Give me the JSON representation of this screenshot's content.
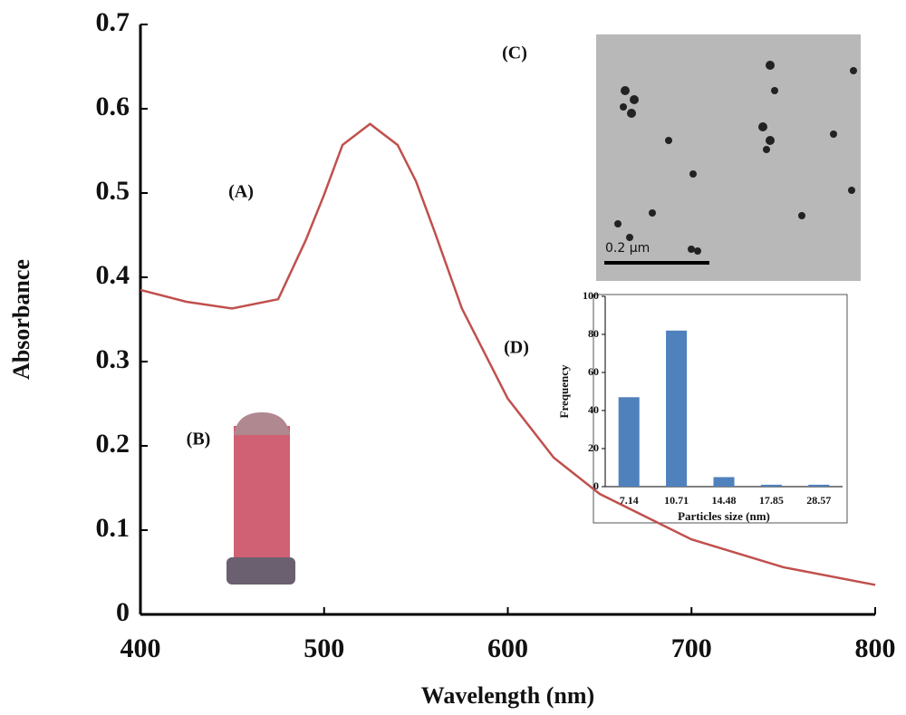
{
  "chart_data": [
    {
      "type": "line",
      "x_label": "Wavelength (nm)",
      "y_label": "Absorbance",
      "x": [
        400,
        425,
        450,
        475,
        490,
        500,
        510,
        525,
        540,
        550,
        560,
        575,
        600,
        625,
        650,
        700,
        750,
        800
      ],
      "series": [
        {
          "color": "#c0504d",
          "values": [
            0.385,
            0.371,
            0.363,
            0.374,
            0.444,
            0.498,
            0.557,
            0.582,
            0.557,
            0.514,
            0.455,
            0.363,
            0.256,
            0.186,
            0.143,
            0.089,
            0.056,
            0.035
          ]
        }
      ],
      "xlim": [
        400,
        800
      ],
      "xticks": [
        400,
        500,
        600,
        700,
        800
      ],
      "ylim": [
        0,
        0.7
      ],
      "yticks": [
        0,
        0.1,
        0.2,
        0.3,
        0.4,
        0.5,
        0.6,
        0.7
      ],
      "annotations": [
        "(A)",
        "(B)",
        "(C)",
        "(D)"
      ]
    },
    {
      "type": "bar",
      "x_label": "Particles size (nm)",
      "y_label": "Frequency",
      "categories": [
        "7.14",
        "10.71",
        "14.48",
        "17.85",
        "28.57"
      ],
      "values": [
        47,
        82,
        5,
        1,
        1
      ],
      "color": "#4f81bd",
      "ylim": [
        0,
        100
      ],
      "yticks": [
        0,
        20,
        40,
        60,
        80,
        100
      ]
    }
  ],
  "inset_image": {
    "scale_label": "0.2 µm"
  }
}
